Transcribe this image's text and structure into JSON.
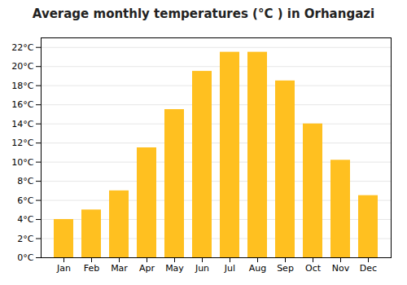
{
  "chart_data": {
    "type": "bar",
    "title": "Average monthly temperatures (°C ) in Orhangazi",
    "categories": [
      "Jan",
      "Feb",
      "Mar",
      "Apr",
      "May",
      "Jun",
      "Jul",
      "Aug",
      "Sep",
      "Oct",
      "Nov",
      "Dec"
    ],
    "values": [
      4.0,
      5.0,
      7.0,
      11.5,
      15.5,
      19.5,
      21.5,
      21.5,
      18.5,
      14.0,
      10.2,
      6.5
    ],
    "color": "#FFC020",
    "ylim": [
      0,
      23
    ],
    "yticks": [
      {
        "value": 0,
        "label": "0°C"
      },
      {
        "value": 2,
        "label": "2°C"
      },
      {
        "value": 4,
        "label": "4°C"
      },
      {
        "value": 6,
        "label": "6°C"
      },
      {
        "value": 8,
        "label": "8°C"
      },
      {
        "value": 10,
        "label": "10°C"
      },
      {
        "value": 12,
        "label": "12°C"
      },
      {
        "value": 14,
        "label": "14°C"
      },
      {
        "value": 16,
        "label": "16°C"
      },
      {
        "value": 18,
        "label": "18°C"
      },
      {
        "value": 20,
        "label": "20°C"
      },
      {
        "value": 22,
        "label": "22°C"
      }
    ],
    "grid": true
  }
}
